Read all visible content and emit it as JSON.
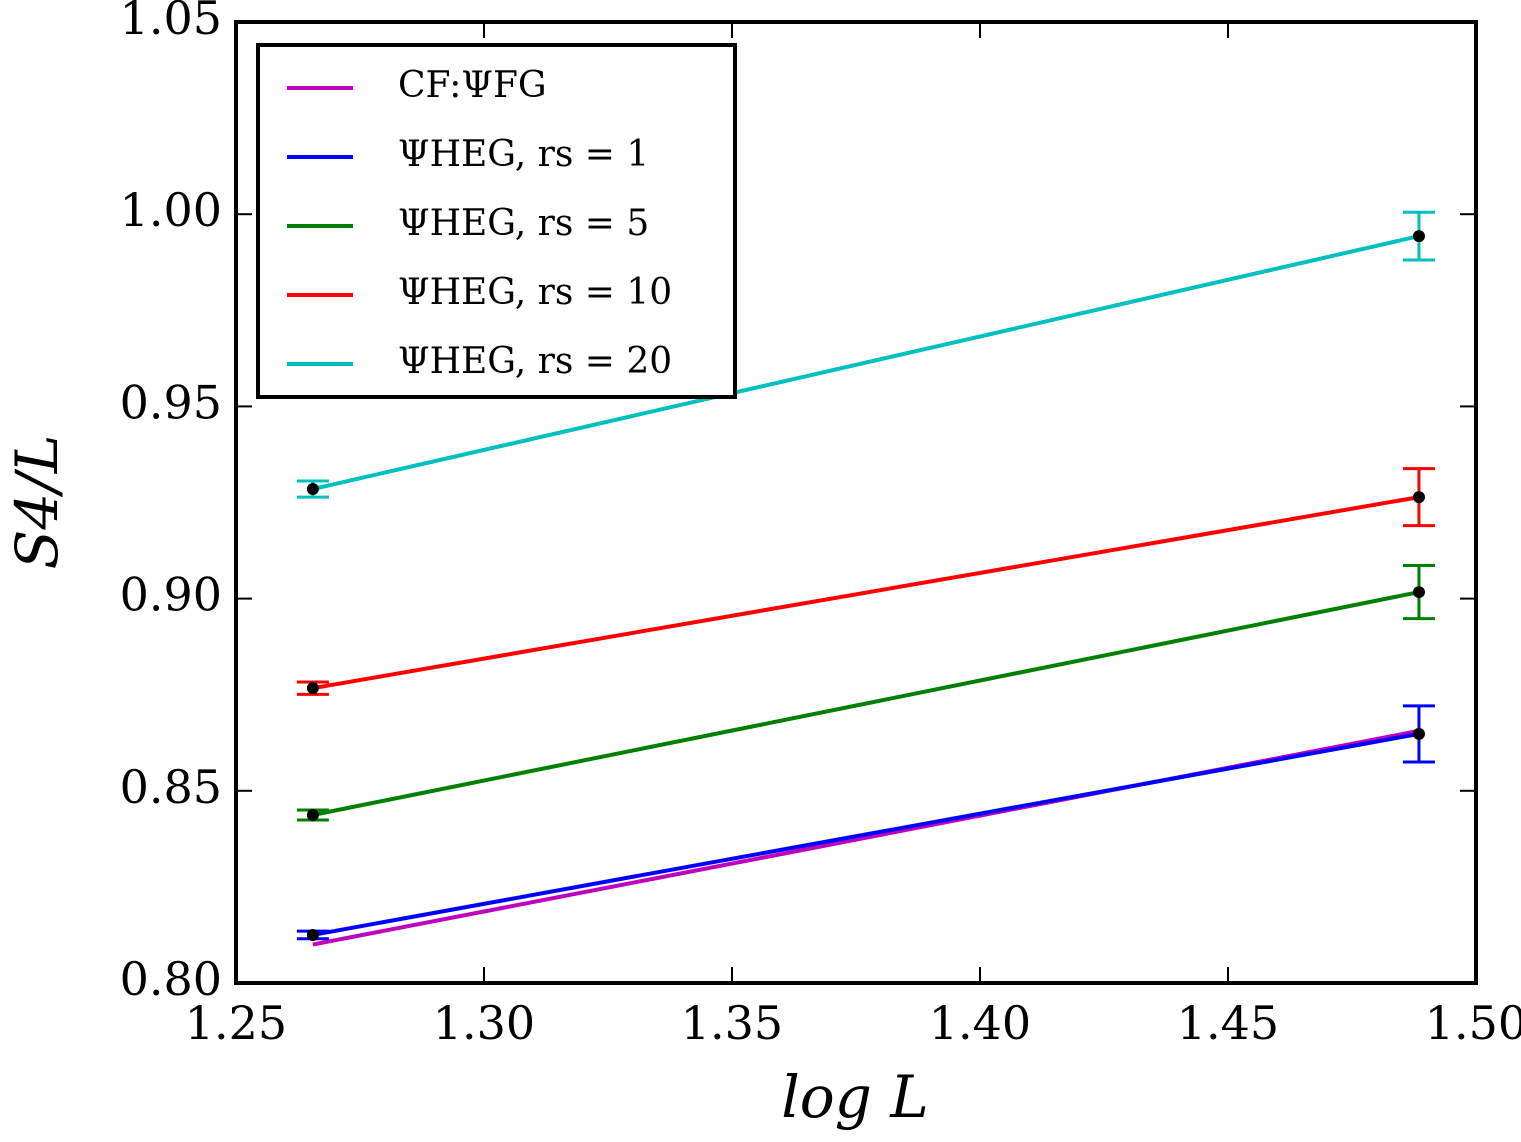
{
  "chart_data": {
    "type": "line",
    "xlabel": "log L",
    "ylabel": "S4/L",
    "xlim": [
      1.25,
      1.5
    ],
    "ylim": [
      0.8,
      1.05
    ],
    "xticks": [
      1.25,
      {
        "value": 1.3,
        "label": "1.30"
      },
      1.35,
      {
        "value": 1.4,
        "label": "1.40"
      },
      1.45,
      {
        "value": 1.5,
        "label": "1.50"
      }
    ],
    "yticks": [
      {
        "value": 0.8,
        "label": "0.80"
      },
      0.85,
      {
        "value": 0.9,
        "label": "0.90"
      },
      0.95,
      {
        "value": 1.0,
        "label": "1.00"
      },
      1.05
    ],
    "legend": "upper left",
    "x": [
      1.2655,
      1.4885
    ],
    "series": [
      {
        "name": "CF:ΨFG",
        "color": "#bf00bf",
        "values": [
          0.81,
          0.8656
        ]
      },
      {
        "name": "ΨHEG, rs = 1",
        "color": "#0000ff",
        "values": [
          0.8125,
          0.8648
        ],
        "errors": [
          0.001,
          0.0073
        ]
      },
      {
        "name": "ΨHEG, rs = 5",
        "color": "#008000",
        "values": [
          0.8437,
          0.9017
        ],
        "errors": [
          0.0013,
          0.0069
        ]
      },
      {
        "name": "ΨHEG, rs = 10",
        "color": "#ff0000",
        "values": [
          0.8767,
          0.9264
        ],
        "errors": [
          0.0016,
          0.0074
        ]
      },
      {
        "name": "ΨHEG, rs = 20",
        "color": "#00bfbf",
        "values": [
          0.9285,
          0.9943
        ],
        "errors": [
          0.0021,
          0.0062
        ]
      }
    ]
  }
}
